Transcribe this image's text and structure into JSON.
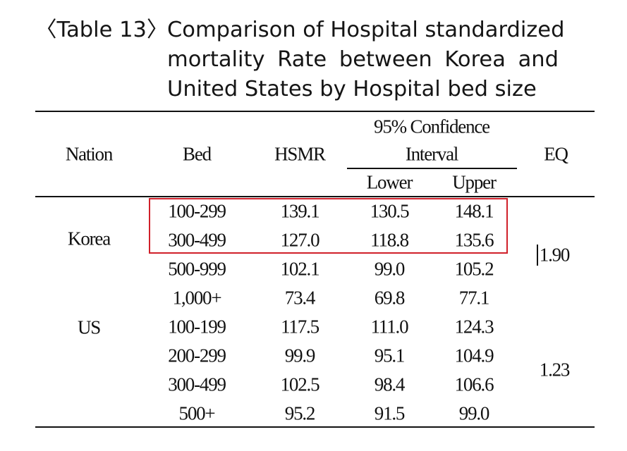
{
  "caption": {
    "label": "〈Table 13〉",
    "line1": "Comparison of Hospital standardized",
    "line2": "mortality Rate between Korea and",
    "line3": "United States by Hospital bed size"
  },
  "headers": {
    "nation": "Nation",
    "bed": "Bed",
    "hsmr": "HSMR",
    "ci_line1": "95% Confidence",
    "ci_line2": "Interval",
    "lower": "Lower",
    "upper": "Upper",
    "eq": "EQ"
  },
  "groups": [
    {
      "nation": "Korea",
      "eq": "1.90"
    },
    {
      "nation": "US",
      "eq": "1.23"
    }
  ],
  "rows": [
    {
      "bed": "100-299",
      "hsmr": "139.1",
      "lower": "130.5",
      "upper": "148.1"
    },
    {
      "bed": "300-499",
      "hsmr": "127.0",
      "lower": "118.8",
      "upper": "135.6"
    },
    {
      "bed": "500-999",
      "hsmr": "102.1",
      "lower": "99.0",
      "upper": "105.2"
    },
    {
      "bed": "1,000+",
      "hsmr": "73.4",
      "lower": "69.8",
      "upper": "77.1"
    },
    {
      "bed": "100-199",
      "hsmr": "117.5",
      "lower": "111.0",
      "upper": "124.3"
    },
    {
      "bed": "200-299",
      "hsmr": "99.9",
      "lower": "95.1",
      "upper": "104.9"
    },
    {
      "bed": "300-499",
      "hsmr": "102.5",
      "lower": "98.4",
      "upper": "106.6"
    },
    {
      "bed": "500+",
      "hsmr": "95.2",
      "lower": "91.5",
      "upper": "99.0"
    }
  ],
  "highlight_color": "#d0202a"
}
